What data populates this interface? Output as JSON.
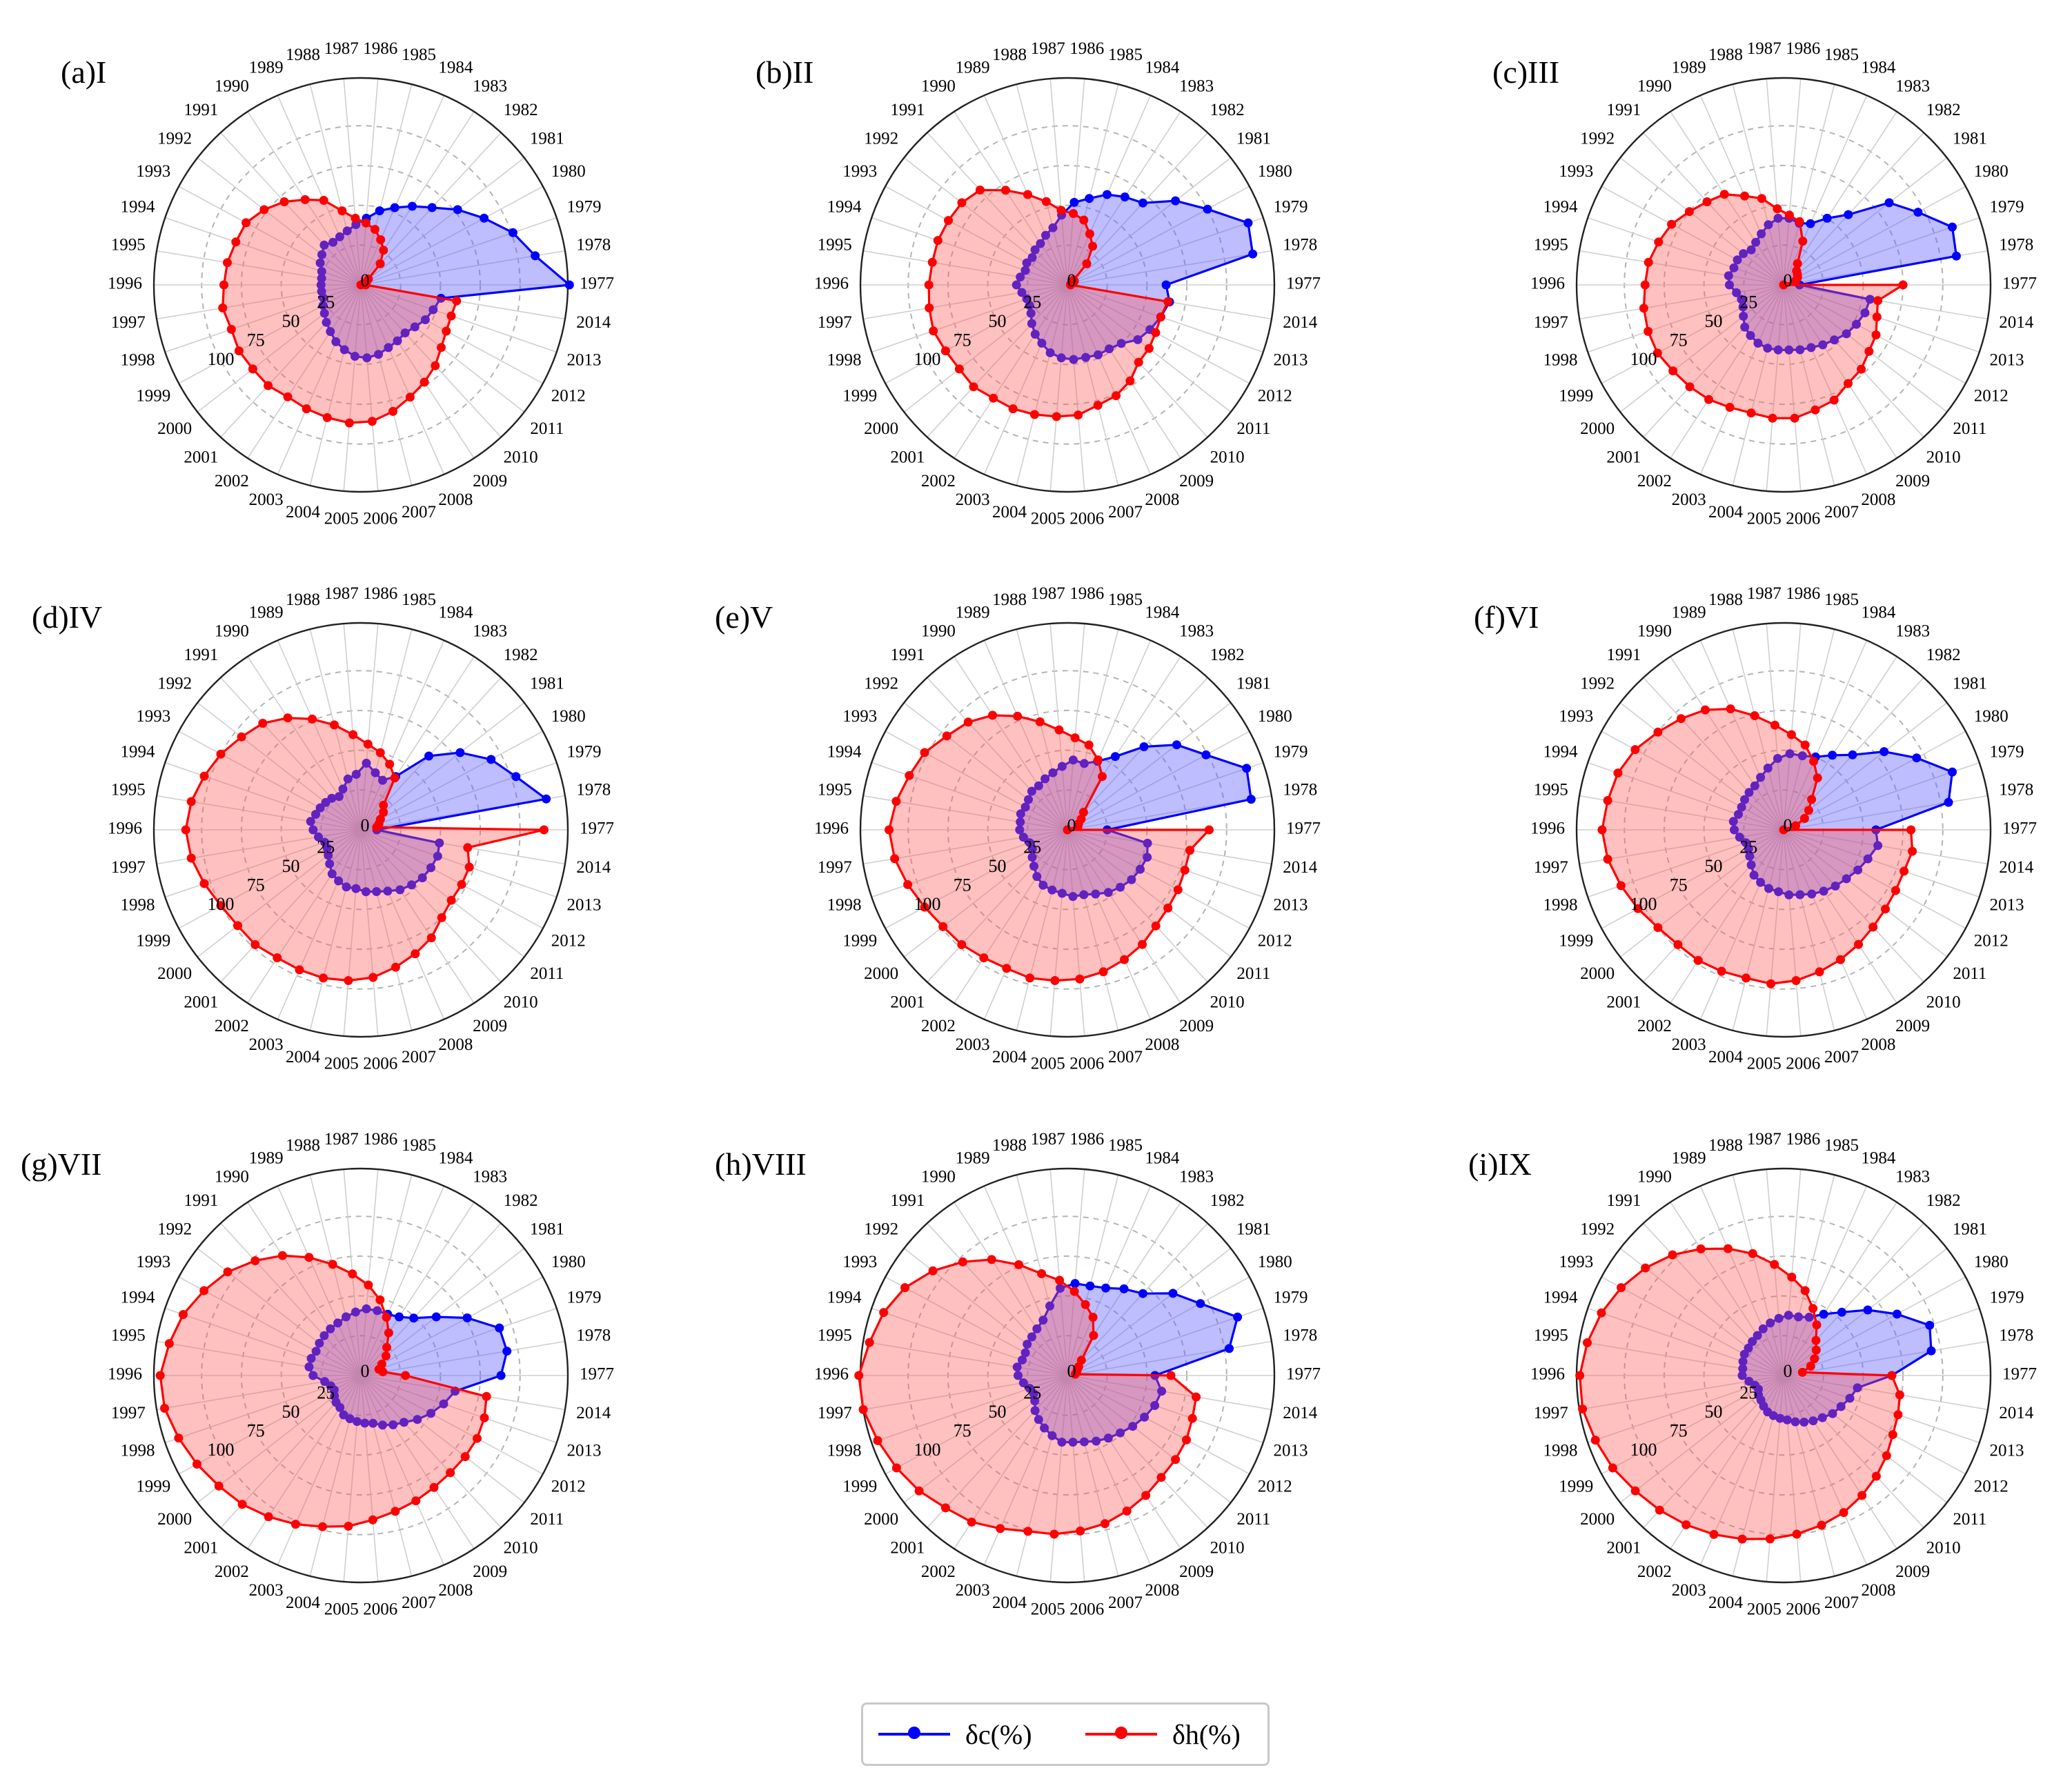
{
  "chart_data": {
    "type": "radar",
    "angular_labels": [
      "1977",
      "1978",
      "1979",
      "1980",
      "1981",
      "1982",
      "1983",
      "1984",
      "1985",
      "1986",
      "1987",
      "1988",
      "1989",
      "1990",
      "1991",
      "1992",
      "1993",
      "1994",
      "1995",
      "1996",
      "1997",
      "1998",
      "1999",
      "2000",
      "2001",
      "2002",
      "2003",
      "2004",
      "2005",
      "2006",
      "2007",
      "2008",
      "2009",
      "2010",
      "2011",
      "2012",
      "2013",
      "2014"
    ],
    "radial_ticks": [
      "0",
      "25",
      "50",
      "75",
      "100"
    ],
    "rlim": [
      0,
      130
    ],
    "grid": true,
    "legend_position": "bottom-center",
    "series_colors": {
      "δc(%)": "#0000ff",
      "δh(%)": "#ff0000"
    },
    "panels": [
      {
        "title": "(a)I",
        "series": [
          {
            "name": "δc(%)",
            "values": [
              131,
              111,
              101,
              88,
              77,
              66,
              59,
              53,
              48,
              42,
              38,
              35,
              33,
              32,
              34,
              31,
              29,
              26,
              25,
              25,
              25,
              25,
              27,
              29,
              32,
              35,
              39,
              42,
              45,
              46,
              45,
              43,
              42,
              41,
              43,
              46,
              48,
              51
            ]
          },
          {
            "name": "δh(%)",
            "values": [
              3,
              0,
              2,
              4,
              6,
              18,
              26,
              31,
              36,
              39,
              42,
              48,
              58,
              64,
              71,
              77,
              82,
              83,
              85,
              86,
              88,
              86,
              87,
              86,
              86,
              84,
              85,
              86,
              87,
              86,
              82,
              77,
              73,
              69,
              64,
              61,
              60,
              61
            ]
          }
        ]
      },
      {
        "title": "(b)II",
        "series": [
          {
            "name": "δc(%)",
            "values": [
              62,
              118,
              120,
              100,
              86,
              70,
              66,
              62,
              56,
              52,
              44,
              37,
              34,
              31,
              30,
              28,
              29,
              28,
              30,
              32,
              29,
              27,
              27,
              29,
              33,
              37,
              40,
              44,
              46,
              47,
              47,
              48,
              48,
              50,
              56,
              59,
              62,
              65
            ]
          },
          {
            "name": "δh(%)",
            "values": [
              2,
              2,
              3,
              5,
              5,
              18,
              29,
              35,
              42,
              45,
              47,
              54,
              62,
              71,
              81,
              84,
              85,
              86,
              86,
              87,
              88,
              89,
              87,
              86,
              87,
              85,
              85,
              84,
              83,
              82,
              78,
              76,
              72,
              66,
              65,
              63,
              62,
              64
            ]
          }
        ]
      },
      {
        "title": "(c)III",
        "series": [
          {
            "name": "δc(%)",
            "values": [
              10,
              110,
              112,
              96,
              84,
              60,
              50,
              42,
              40,
              42,
              42,
              39,
              35,
              32,
              30,
              32,
              33,
              33,
              35,
              34,
              30,
              28,
              29,
              32,
              36,
              38,
              40,
              41,
              41,
              41,
              42,
              43,
              45,
              47,
              50,
              52,
              54,
              55
            ]
          },
          {
            "name": "δh(%)",
            "values": [
              75,
              0,
              8,
              10,
              11,
              12,
              16,
              30,
              41,
              44,
              48,
              56,
              61,
              68,
              71,
              75,
              80,
              83,
              86,
              87,
              89,
              90,
              90,
              88,
              87,
              86,
              84,
              83,
              84,
              84,
              81,
              79,
              74,
              72,
              68,
              66,
              62,
              60
            ]
          }
        ]
      },
      {
        "title": "(d)IV",
        "series": [
          {
            "name": "δc(%)",
            "values": [
              10,
              118,
              103,
              93,
              79,
              63,
              40,
              34,
              37,
              42,
              35,
              33,
              28,
              25,
              27,
              28,
              29,
              30,
              32,
              30,
              27,
              24,
              24,
              26,
              29,
              33,
              35,
              37,
              37,
              39,
              40,
              42,
              45,
              47,
              49,
              50,
              51,
              50
            ]
          },
          {
            "name": "δh(%)",
            "values": [
              115,
              10,
              12,
              14,
              18,
              21,
              39,
              45,
              50,
              54,
              60,
              68,
              76,
              84,
              91,
              95,
              100,
              104,
              108,
              110,
              108,
              104,
              100,
              98,
              98,
              96,
              96,
              96,
              95,
              93,
              89,
              85,
              81,
              75,
              72,
              72,
              72,
              68
            ]
          }
        ]
      },
      {
        "title": "(e)V",
        "series": [
          {
            "name": "δc(%)",
            "values": [
              25,
              117,
              119,
              99,
              87,
              71,
              55,
              47,
              43,
              44,
              40,
              37,
              35,
              33,
              33,
              31,
              30,
              31,
              30,
              30,
              28,
              25,
              25,
              28,
              31,
              35,
              38,
              39,
              40,
              42,
              42,
              44,
              47,
              49,
              51,
              52,
              53,
              51
            ]
          },
          {
            "name": "δh(%)",
            "values": [
              89,
              0,
              7,
              8,
              11,
              15,
              40,
              48,
              55,
              58,
              63,
              70,
              78,
              86,
              92,
              96,
              102,
              105,
              109,
              112,
              110,
              106,
              102,
              99,
              98,
              96,
              95,
              96,
              95,
              94,
              92,
              89,
              86,
              82,
              80,
              79,
              78,
              78
            ]
          }
        ]
      },
      {
        "title": "(f)VI",
        "series": [
          {
            "name": "δc(%)",
            "values": [
              58,
              105,
              112,
              95,
              80,
              64,
              56,
              50,
              48,
              48,
              45,
              40,
              36,
              33,
              32,
              31,
              30,
              30,
              32,
              31,
              28,
              25,
              25,
              27,
              30,
              34,
              36,
              38,
              39,
              41,
              42,
              44,
              46,
              48,
              50,
              53,
              56,
              60
            ]
          },
          {
            "name": "δh(%)",
            "values": [
              80,
              0,
              8,
              15,
              20,
              26,
              39,
              47,
              55,
              60,
              66,
              74,
              83,
              90,
              95,
              100,
              106,
              110,
              112,
              114,
              112,
              108,
              104,
              100,
              98,
              98,
              97,
              96,
              97,
              95,
              92,
              89,
              86,
              83,
              81,
              80,
              80,
              82
            ]
          }
        ]
      },
      {
        "title": "(g)VII",
        "series": [
          {
            "name": "δc(%)",
            "values": [
              88,
              93,
              92,
              76,
              60,
              49,
              44,
              42,
              42,
              42,
              40,
              38,
              36,
              35,
              34,
              33,
              32,
              33,
              33,
              30,
              23,
              20,
              19,
              21,
              23,
              24,
              27,
              28,
              29,
              30,
              31,
              34,
              37,
              40,
              45,
              50,
              55,
              60
            ]
          },
          {
            "name": "δh(%)",
            "values": [
              28,
              14,
              12,
              15,
              20,
              24,
              32,
              40,
              49,
              57,
              64,
              72,
              81,
              90,
              98,
              106,
              112,
              118,
              122,
              126,
              125,
              121,
              117,
              113,
              110,
              106,
              102,
              98,
              95,
              91,
              88,
              86,
              84,
              83,
              83,
              83,
              82,
              80
            ]
          }
        ]
      },
      {
        "title": "(h)VIII",
        "series": [
          {
            "name": "δc(%)",
            "values": [
              55,
              103,
              113,
              95,
              84,
              70,
              65,
              60,
              58,
              58,
              55,
              45,
              38,
              35,
              33,
              32,
              30,
              30,
              32,
              31,
              28,
              25,
              24,
              26,
              30,
              33,
              36,
              39,
              42,
              42,
              43,
              45,
              47,
              49,
              52,
              55,
              58,
              60
            ]
          },
          {
            "name": "δh(%)",
            "values": [
              65,
              5,
              6,
              7,
              9,
              13,
              30,
              40,
              46,
              53,
              60,
              66,
              76,
              87,
              97,
              107,
              116,
              122,
              126,
              131,
              130,
              126,
              122,
              118,
              113,
              110,
              105,
              101,
              100,
              98,
              96,
              93,
              90,
              87,
              86,
              85,
              83,
              82
            ]
          }
        ]
      },
      {
        "title": "(i)IX",
        "series": [
          {
            "name": "δc(%)",
            "values": [
              68,
              94,
              97,
              81,
              67,
              54,
              46,
              40,
              38,
              38,
              36,
              34,
              32,
              30,
              29,
              28,
              28,
              27,
              26,
              26,
              22,
              19,
              18,
              20,
              21,
              23,
              25,
              26,
              27,
              28,
              30,
              32,
              34,
              36,
              39,
              41,
              44,
              47
            ]
          },
          {
            "name": "δh(%)",
            "values": [
              68,
              12,
              18,
              22,
              26,
              30,
              38,
              46,
              55,
              62,
              70,
              79,
              87,
              95,
              103,
              110,
              116,
              121,
              125,
              128,
              128,
              125,
              122,
              118,
              115,
              112,
              109,
              106,
              103,
              100,
              97,
              94,
              90,
              86,
              82,
              78,
              76,
              74
            ]
          }
        ]
      }
    ]
  },
  "legend": {
    "items": [
      {
        "label": "δc(%)",
        "color": "#0000ff"
      },
      {
        "label": "δh(%)",
        "color": "#ff0000"
      }
    ]
  }
}
